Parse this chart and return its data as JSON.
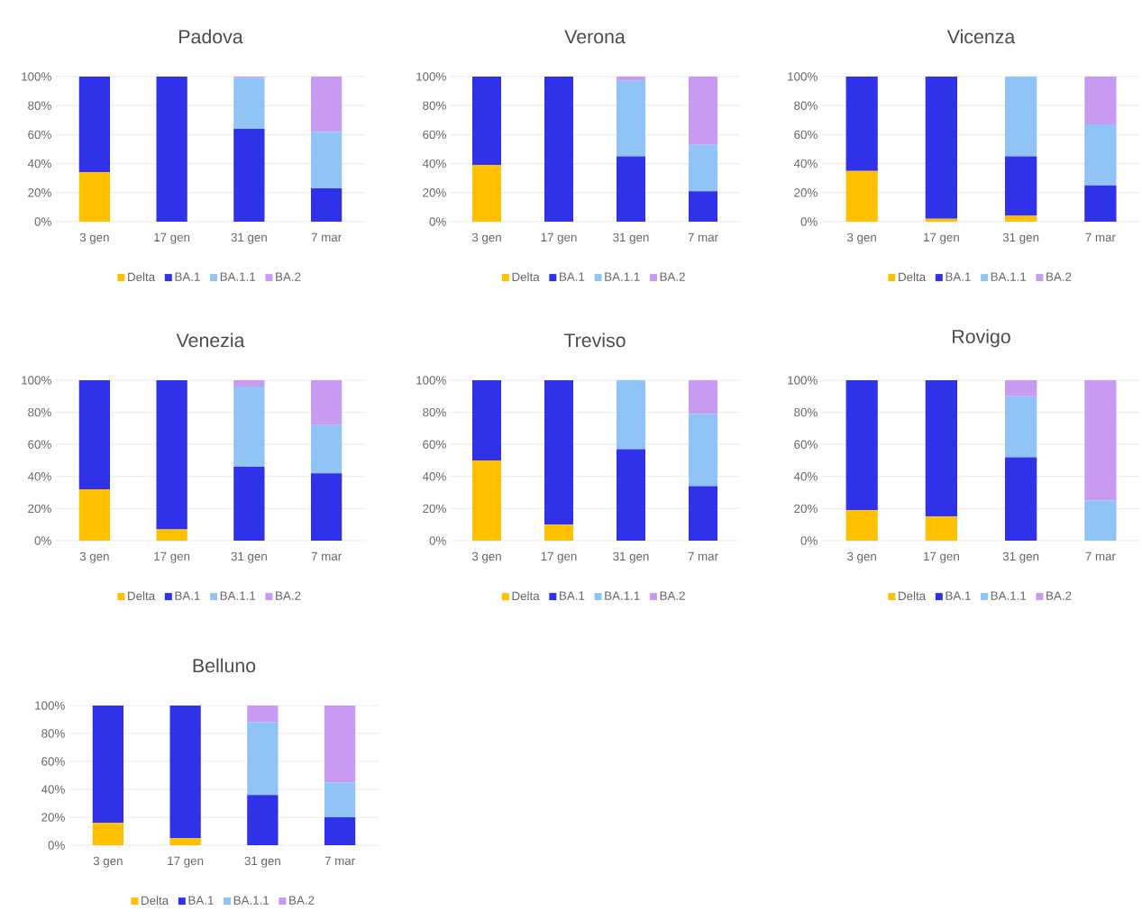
{
  "chart_data": [
    {
      "type": "bar",
      "title": "Padova",
      "categories": [
        "3 gen",
        "17 gen",
        "31 gen",
        "7 mar"
      ],
      "stacked": true,
      "grid": "y",
      "legend": "bottom",
      "ylim": [
        0,
        100
      ],
      "yticks": [
        {
          "value": 0,
          "label": "0%"
        },
        {
          "value": 20,
          "label": "20%"
        },
        {
          "value": 40,
          "label": "40%"
        },
        {
          "value": 60,
          "label": "60%"
        },
        {
          "value": 80,
          "label": "80%"
        },
        {
          "value": 100,
          "label": "100%"
        }
      ],
      "series": [
        {
          "name": "Delta",
          "color": "#ffc000",
          "values": [
            34,
            0,
            0,
            0
          ]
        },
        {
          "name": "BA.1",
          "color": "#3032ea",
          "values": [
            66,
            100,
            64,
            23
          ]
        },
        {
          "name": "BA.1.1",
          "color": "#90c4f6",
          "values": [
            0,
            0,
            35,
            39
          ]
        },
        {
          "name": "BA.2",
          "color": "#c99af2",
          "values": [
            0,
            0,
            1,
            38
          ]
        }
      ]
    },
    {
      "type": "bar",
      "title": "Verona",
      "categories": [
        "3 gen",
        "17 gen",
        "31 gen",
        "7 mar"
      ],
      "stacked": true,
      "grid": "y",
      "legend": "bottom",
      "ylim": [
        0,
        100
      ],
      "yticks": [
        {
          "value": 0,
          "label": "0%"
        },
        {
          "value": 20,
          "label": "20%"
        },
        {
          "value": 40,
          "label": "40%"
        },
        {
          "value": 60,
          "label": "60%"
        },
        {
          "value": 80,
          "label": "80%"
        },
        {
          "value": 100,
          "label": "100%"
        }
      ],
      "series": [
        {
          "name": "Delta",
          "color": "#ffc000",
          "values": [
            39,
            0,
            0,
            0
          ]
        },
        {
          "name": "BA.1",
          "color": "#3032ea",
          "values": [
            61,
            100,
            45,
            21
          ]
        },
        {
          "name": "BA.1.1",
          "color": "#90c4f6",
          "values": [
            0,
            0,
            52,
            32
          ]
        },
        {
          "name": "BA.2",
          "color": "#c99af2",
          "values": [
            0,
            0,
            3,
            47
          ]
        }
      ]
    },
    {
      "type": "bar",
      "title": "Vicenza",
      "categories": [
        "3 gen",
        "17 gen",
        "31 gen",
        "7 mar"
      ],
      "stacked": true,
      "grid": "y",
      "legend": "bottom",
      "ylim": [
        0,
        100
      ],
      "yticks": [
        {
          "value": 0,
          "label": "0%"
        },
        {
          "value": 20,
          "label": "20%"
        },
        {
          "value": 40,
          "label": "40%"
        },
        {
          "value": 60,
          "label": "60%"
        },
        {
          "value": 80,
          "label": "80%"
        },
        {
          "value": 100,
          "label": "100%"
        }
      ],
      "series": [
        {
          "name": "Delta",
          "color": "#ffc000",
          "values": [
            35,
            2,
            4,
            0
          ]
        },
        {
          "name": "BA.1",
          "color": "#3032ea",
          "values": [
            65,
            98,
            41,
            25
          ]
        },
        {
          "name": "BA.1.1",
          "color": "#90c4f6",
          "values": [
            0,
            0,
            55,
            42
          ]
        },
        {
          "name": "BA.2",
          "color": "#c99af2",
          "values": [
            0,
            0,
            0,
            33
          ]
        }
      ]
    },
    {
      "type": "bar",
      "title": "Venezia",
      "categories": [
        "3 gen",
        "17 gen",
        "31 gen",
        "7 mar"
      ],
      "stacked": true,
      "grid": "y",
      "legend": "bottom",
      "ylim": [
        0,
        100
      ],
      "yticks": [
        {
          "value": 0,
          "label": "0%"
        },
        {
          "value": 20,
          "label": "20%"
        },
        {
          "value": 40,
          "label": "40%"
        },
        {
          "value": 60,
          "label": "60%"
        },
        {
          "value": 80,
          "label": "80%"
        },
        {
          "value": 100,
          "label": "100%"
        }
      ],
      "series": [
        {
          "name": "Delta",
          "color": "#ffc000",
          "values": [
            32,
            7,
            0,
            0
          ]
        },
        {
          "name": "BA.1",
          "color": "#3032ea",
          "values": [
            68,
            93,
            46,
            42
          ]
        },
        {
          "name": "BA.1.1",
          "color": "#90c4f6",
          "values": [
            0,
            0,
            50,
            30
          ]
        },
        {
          "name": "BA.2",
          "color": "#c99af2",
          "values": [
            0,
            0,
            4,
            28
          ]
        }
      ]
    },
    {
      "type": "bar",
      "title": "Treviso",
      "categories": [
        "3 gen",
        "17 gen",
        "31 gen",
        "7 mar"
      ],
      "stacked": true,
      "grid": "y",
      "legend": "bottom",
      "ylim": [
        0,
        100
      ],
      "yticks": [
        {
          "value": 0,
          "label": "0%"
        },
        {
          "value": 20,
          "label": "20%"
        },
        {
          "value": 40,
          "label": "40%"
        },
        {
          "value": 60,
          "label": "60%"
        },
        {
          "value": 80,
          "label": "80%"
        },
        {
          "value": 100,
          "label": "100%"
        }
      ],
      "series": [
        {
          "name": "Delta",
          "color": "#ffc000",
          "values": [
            50,
            10,
            0,
            0
          ]
        },
        {
          "name": "BA.1",
          "color": "#3032ea",
          "values": [
            50,
            90,
            57,
            34
          ]
        },
        {
          "name": "BA.1.1",
          "color": "#90c4f6",
          "values": [
            0,
            0,
            43,
            45
          ]
        },
        {
          "name": "BA.2",
          "color": "#c99af2",
          "values": [
            0,
            0,
            0,
            21
          ]
        }
      ]
    },
    {
      "type": "bar",
      "title": "Rovigo",
      "categories": [
        "3 gen",
        "17 gen",
        "31 gen",
        "7 mar"
      ],
      "stacked": true,
      "grid": "y",
      "legend": "bottom",
      "ylim": [
        0,
        100
      ],
      "yticks": [
        {
          "value": 0,
          "label": "0%"
        },
        {
          "value": 20,
          "label": "20%"
        },
        {
          "value": 40,
          "label": "40%"
        },
        {
          "value": 60,
          "label": "60%"
        },
        {
          "value": 80,
          "label": "80%"
        },
        {
          "value": 100,
          "label": "100%"
        }
      ],
      "series": [
        {
          "name": "Delta",
          "color": "#ffc000",
          "values": [
            19,
            15,
            0,
            0
          ]
        },
        {
          "name": "BA.1",
          "color": "#3032ea",
          "values": [
            81,
            85,
            52,
            0
          ]
        },
        {
          "name": "BA.1.1",
          "color": "#90c4f6",
          "values": [
            0,
            0,
            38,
            25
          ]
        },
        {
          "name": "BA.2",
          "color": "#c99af2",
          "values": [
            0,
            0,
            10,
            75
          ]
        }
      ]
    },
    {
      "type": "bar",
      "title": "Belluno",
      "categories": [
        "3 gen",
        "17 gen",
        "31 gen",
        "7 mar"
      ],
      "stacked": true,
      "grid": "y",
      "legend": "bottom",
      "ylim": [
        0,
        100
      ],
      "yticks": [
        {
          "value": 0,
          "label": "0%"
        },
        {
          "value": 20,
          "label": "20%"
        },
        {
          "value": 40,
          "label": "40%"
        },
        {
          "value": 60,
          "label": "60%"
        },
        {
          "value": 80,
          "label": "80%"
        },
        {
          "value": 100,
          "label": "100%"
        }
      ],
      "series": [
        {
          "name": "Delta",
          "color": "#ffc000",
          "values": [
            16,
            5,
            0,
            0
          ]
        },
        {
          "name": "BA.1",
          "color": "#3032ea",
          "values": [
            84,
            95,
            36,
            20
          ]
        },
        {
          "name": "BA.1.1",
          "color": "#90c4f6",
          "values": [
            0,
            0,
            52,
            25
          ]
        },
        {
          "name": "BA.2",
          "color": "#c99af2",
          "values": [
            0,
            0,
            12,
            55
          ]
        }
      ]
    }
  ]
}
